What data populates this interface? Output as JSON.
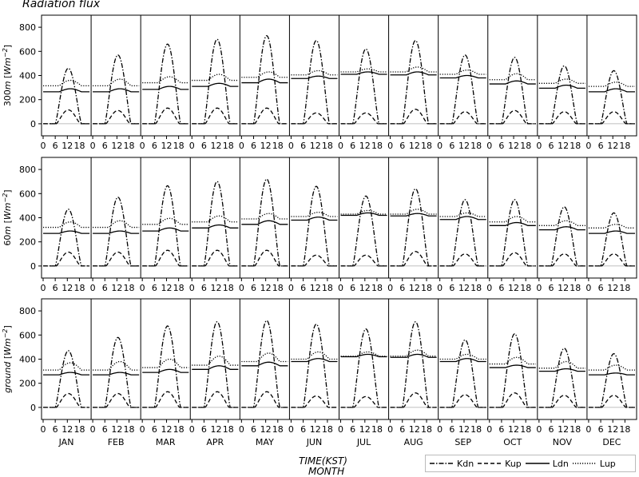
{
  "chart_data": {
    "type": "line",
    "title": "Radiation flux",
    "xlabel_line1": "TIME(KST)",
    "xlabel_line2": "MONTH",
    "hour_ticks": [
      "0",
      "6",
      "12",
      "18"
    ],
    "months": [
      "JAN",
      "FEB",
      "MAR",
      "APR",
      "MAY",
      "JUN",
      "JUL",
      "AUG",
      "SEP",
      "OCT",
      "NOV",
      "DEC"
    ],
    "ylim": [
      -100,
      900
    ],
    "yticks": [
      0,
      200,
      400,
      600,
      800
    ],
    "series_styles": {
      "Kdn": "dash-dot",
      "Kup": "dashed",
      "Ldn": "solid",
      "Lup": "dotted"
    },
    "legend": [
      "Kdn",
      "Kup",
      "Ldn",
      "Lup"
    ],
    "panels": [
      {
        "ylabel": "300m [Wm⁻²]",
        "ylabel_parts": {
          "main": "300",
          "italic": "m",
          "unit": "Wm",
          "exp": "−2"
        },
        "series": [
          {
            "name": "Kdn",
            "daily_peak": [
              460,
              570,
              660,
              700,
              730,
              690,
              620,
              690,
              570,
              550,
              480,
              440
            ]
          },
          {
            "name": "Kup",
            "daily_peak": [
              115,
              110,
              130,
              130,
              130,
              90,
              90,
              120,
              100,
              110,
              100,
              100
            ]
          },
          {
            "name": "Ldn",
            "night": [
              265,
              265,
              285,
              310,
              340,
              375,
              410,
              405,
              380,
              330,
              295,
              265
            ],
            "day_peak": [
              290,
              290,
              310,
              335,
              370,
              395,
              430,
              430,
              400,
              355,
              320,
              290
            ]
          },
          {
            "name": "Lup",
            "night": [
              315,
              315,
              340,
              360,
              385,
              405,
              430,
              430,
              410,
              365,
              335,
              310
            ],
            "day_peak": [
              360,
              370,
              390,
              410,
              430,
              440,
              455,
              470,
              445,
              415,
              370,
              345
            ]
          }
        ]
      },
      {
        "ylabel": "60m [Wm⁻²]",
        "ylabel_parts": {
          "main": "60",
          "italic": "m",
          "unit": "Wm",
          "exp": "−2"
        },
        "series": [
          {
            "name": "Kdn",
            "daily_peak": [
              470,
              570,
              665,
              700,
              720,
              660,
              580,
              640,
              550,
              550,
              490,
              440
            ]
          },
          {
            "name": "Kup",
            "daily_peak": [
              115,
              115,
              130,
              130,
              130,
              90,
              90,
              120,
              100,
              110,
              100,
              100
            ]
          },
          {
            "name": "Ldn",
            "night": [
              270,
              270,
              290,
              315,
              345,
              380,
              420,
              415,
              385,
              335,
              300,
              270
            ],
            "day_peak": [
              290,
              290,
              315,
              340,
              375,
              405,
              440,
              435,
              410,
              360,
              325,
              290
            ]
          },
          {
            "name": "Lup",
            "night": [
              320,
              320,
              345,
              365,
              390,
              410,
              430,
              430,
              410,
              365,
              335,
              315
            ],
            "day_peak": [
              365,
              375,
              395,
              415,
              435,
              445,
              460,
              470,
              440,
              410,
              375,
              345
            ]
          }
        ]
      },
      {
        "ylabel": "ground [Wm⁻²]",
        "ylabel_parts": {
          "main": "",
          "italic": "ground",
          "unit": "Wm",
          "exp": "−2"
        },
        "series": [
          {
            "name": "Kdn",
            "daily_peak": [
              470,
              580,
              675,
              710,
              720,
              690,
              650,
              710,
              560,
              610,
              490,
              445
            ]
          },
          {
            "name": "Kup",
            "daily_peak": [
              115,
              115,
              130,
              130,
              130,
              95,
              90,
              120,
              105,
              120,
              100,
              100
            ]
          },
          {
            "name": "Ldn",
            "night": [
              270,
              270,
              290,
              315,
              345,
              380,
              420,
              415,
              380,
              330,
              300,
              270
            ],
            "day_peak": [
              290,
              290,
              315,
              345,
              375,
              405,
              440,
              440,
              405,
              350,
              320,
              285
            ]
          },
          {
            "name": "Lup",
            "night": [
              310,
              310,
              330,
              350,
              380,
              400,
              425,
              425,
              400,
              360,
              325,
              310
            ],
            "day_peak": [
              370,
              380,
              400,
              425,
              450,
              460,
              460,
              475,
              440,
              415,
              380,
              350
            ]
          }
        ]
      }
    ]
  }
}
